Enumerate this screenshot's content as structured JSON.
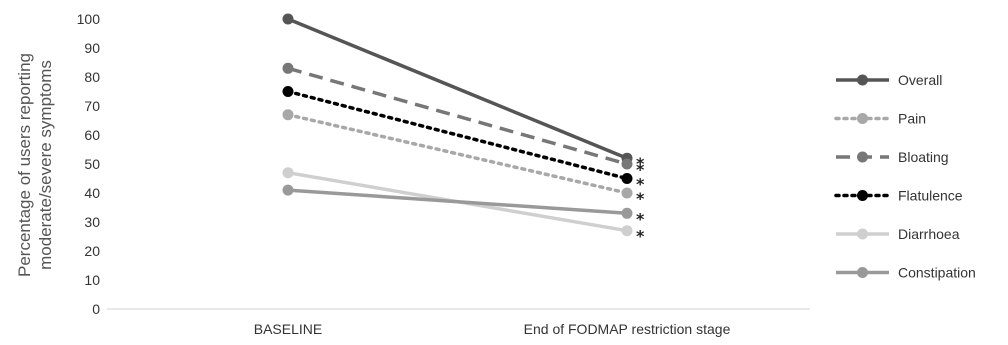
{
  "chart_data": {
    "type": "line",
    "categories": [
      "BASELINE",
      "End of FODMAP restriction stage"
    ],
    "ylabel": "Percentage of users reporting moderate/severe symptoms",
    "ylabel_lines": [
      "Percentage of users reporting",
      "moderate/severe symptoms"
    ],
    "ylim": [
      0,
      100
    ],
    "yticks": [
      0,
      10,
      20,
      30,
      40,
      50,
      60,
      70,
      80,
      90,
      100
    ],
    "grid": false,
    "legend": "right",
    "significance_marker": "*",
    "series": [
      {
        "name": "Overall",
        "values": [
          100,
          52
        ],
        "color": "#555555",
        "style": "solid",
        "significant": true
      },
      {
        "name": "Pain",
        "values": [
          67,
          40
        ],
        "color": "#a8a8a8",
        "style": "dotted",
        "significant": true
      },
      {
        "name": "Bloating",
        "values": [
          83,
          50
        ],
        "color": "#777777",
        "style": "dashed",
        "significant": true
      },
      {
        "name": "Flatulence",
        "values": [
          75,
          45
        ],
        "color": "#000000",
        "style": "dotted",
        "significant": true
      },
      {
        "name": "Diarrhoea",
        "values": [
          47,
          27
        ],
        "color": "#cfcfcf",
        "style": "solid",
        "significant": true
      },
      {
        "name": "Constipation",
        "values": [
          41,
          33
        ],
        "color": "#999999",
        "style": "solid",
        "significant": true
      }
    ]
  }
}
